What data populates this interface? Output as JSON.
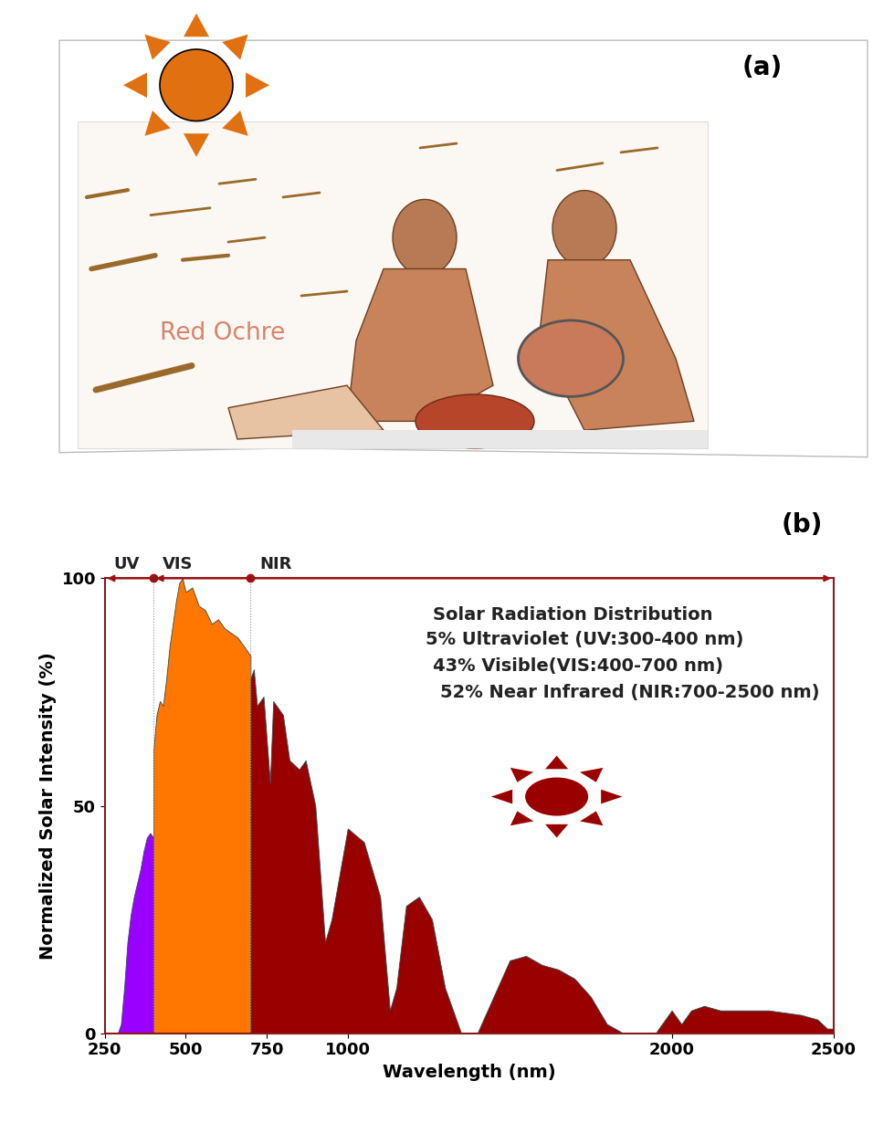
{
  "illustration": {
    "panel": "(a)",
    "caption": "Red Ochre"
  },
  "chart_data": {
    "type": "area",
    "panel": "(b)",
    "title": "Solar Radiation Distribution",
    "annotations": [
      "5% Ultraviolet (UV:300-400 nm)",
      "43% Visible(VIS:400-700 nm)",
      "52% Near Infrared (NIR:700-2500 nm)"
    ],
    "x_label": "Wavelength (nm)",
    "y_label": "Normalized Solar Intensity (%)",
    "xlim": [
      250,
      2500
    ],
    "ylim": [
      0,
      100
    ],
    "xticks": [
      250,
      500,
      750,
      1000,
      2000,
      2500
    ],
    "yticks": [
      0,
      50,
      100
    ],
    "series": [
      {
        "name": "UV",
        "color": "#9900ff",
        "x": [
          290,
          300,
          310,
          320,
          330,
          340,
          350,
          360,
          370,
          380,
          390,
          400
        ],
        "values": [
          0,
          2,
          10,
          20,
          26,
          30,
          33,
          36,
          40,
          43,
          44,
          43
        ]
      },
      {
        "name": "VIS",
        "color": "#ff7700",
        "x": [
          400,
          410,
          420,
          430,
          440,
          450,
          460,
          470,
          480,
          490,
          500,
          520,
          540,
          560,
          580,
          600,
          620,
          640,
          660,
          680,
          700
        ],
        "values": [
          62,
          70,
          73,
          72,
          78,
          85,
          90,
          95,
          99,
          100,
          97,
          98,
          94,
          93,
          90,
          91,
          89,
          88,
          87,
          85,
          83
        ]
      },
      {
        "name": "NIR",
        "color": "#990000",
        "x": [
          700,
          710,
          720,
          740,
          760,
          770,
          800,
          820,
          850,
          870,
          900,
          930,
          950,
          1000,
          1050,
          1100,
          1130,
          1150,
          1180,
          1220,
          1260,
          1300,
          1350,
          1400,
          1450,
          1500,
          1550,
          1600,
          1650,
          1700,
          1750,
          1800,
          1850,
          1900,
          1950,
          2000,
          2030,
          2060,
          2100,
          2150,
          2200,
          2300,
          2400,
          2450,
          2480,
          2500
        ],
        "values": [
          78,
          80,
          72,
          74,
          55,
          73,
          70,
          60,
          58,
          60,
          50,
          20,
          25,
          45,
          42,
          30,
          5,
          10,
          28,
          30,
          25,
          10,
          0,
          0,
          8,
          16,
          17,
          15,
          14,
          12,
          8,
          2,
          0,
          0,
          0,
          5,
          2,
          5,
          6,
          5,
          5,
          5,
          4,
          3,
          1,
          1
        ]
      }
    ]
  }
}
